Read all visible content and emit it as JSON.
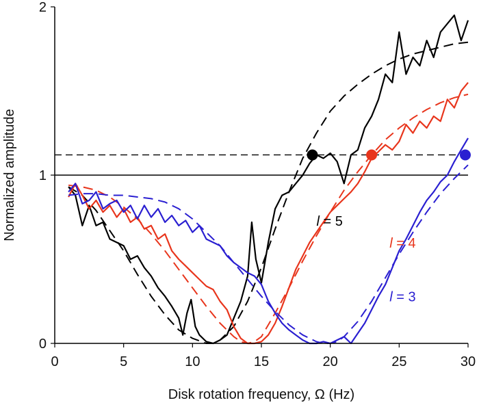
{
  "chart_data": {
    "type": "line",
    "title": "",
    "xlabel": "Disk rotation frequency, Ω (Hz)",
    "ylabel": "Normalized amplitude",
    "xlim": [
      0,
      30
    ],
    "ylim": [
      0,
      2
    ],
    "xticks": [
      0,
      5,
      10,
      15,
      20,
      25,
      30
    ],
    "yticks": [
      0,
      1,
      2
    ],
    "reference_lines": [
      {
        "y": 1.0,
        "style": "solid",
        "color": "#000000"
      },
      {
        "y": 1.12,
        "style": "dashed",
        "color": "#000000"
      }
    ],
    "markers": [
      {
        "series": "l = 5",
        "x": 18.7,
        "y": 1.12,
        "color": "#000000"
      },
      {
        "series": "l = 4",
        "x": 23.0,
        "y": 1.12,
        "color": "#e8351c"
      },
      {
        "series": "l = 3",
        "x": 29.8,
        "y": 1.12,
        "color": "#2a1fd1"
      }
    ],
    "series": [
      {
        "name": "l = 5",
        "color": "#000000",
        "label": {
          "var": "l",
          "eq": " = 5",
          "x": 19.0,
          "y": 0.7
        },
        "x": [
          1.0,
          1.5,
          2.0,
          2.5,
          3.0,
          3.5,
          4.0,
          4.5,
          5.0,
          5.5,
          6.0,
          6.5,
          7.0,
          7.5,
          8.0,
          8.5,
          9.0,
          9.3,
          9.6,
          9.9,
          10.2,
          10.5,
          11.0,
          11.5,
          12.0,
          12.5,
          13.0,
          13.5,
          14.0,
          14.3,
          14.6,
          15.0,
          15.5,
          16.0,
          16.5,
          17.0,
          17.5,
          18.0,
          18.5,
          19.0,
          19.5,
          20.0,
          20.5,
          21.0,
          21.5,
          22.0,
          22.5,
          23.0,
          23.5,
          24.0,
          24.5,
          25.0,
          25.5,
          26.0,
          26.5,
          27.0,
          27.5,
          28.0,
          28.5,
          29.0,
          29.5,
          30.0
        ],
        "values": [
          0.93,
          0.88,
          0.7,
          0.82,
          0.7,
          0.72,
          0.62,
          0.6,
          0.58,
          0.5,
          0.52,
          0.45,
          0.4,
          0.33,
          0.28,
          0.22,
          0.15,
          0.05,
          0.18,
          0.26,
          0.1,
          0.05,
          0.01,
          0.0,
          0.02,
          0.05,
          0.15,
          0.25,
          0.4,
          0.72,
          0.5,
          0.36,
          0.6,
          0.8,
          0.88,
          0.9,
          0.95,
          1.0,
          1.07,
          1.12,
          1.1,
          1.13,
          1.08,
          0.95,
          1.12,
          1.15,
          1.28,
          1.35,
          1.45,
          1.6,
          1.55,
          1.85,
          1.6,
          1.7,
          1.65,
          1.8,
          1.7,
          1.85,
          1.9,
          1.95,
          1.8,
          1.92
        ]
      },
      {
        "name": "l = 5 fit",
        "color": "#000000",
        "dashed": true,
        "x": [
          1.0,
          2.0,
          3.0,
          4.0,
          5.0,
          6.0,
          7.0,
          8.0,
          9.0,
          10.0,
          11.0,
          11.5,
          12.0,
          13.0,
          14.0,
          15.0,
          16.0,
          17.0,
          18.0,
          19.0,
          20.0,
          21.0,
          22.0,
          23.0,
          24.0,
          25.0,
          26.0,
          27.0,
          28.0,
          29.0,
          30.0
        ],
        "values": [
          0.93,
          0.88,
          0.79,
          0.67,
          0.55,
          0.41,
          0.28,
          0.17,
          0.08,
          0.03,
          0.0,
          0.0,
          0.02,
          0.1,
          0.25,
          0.45,
          0.68,
          0.9,
          1.1,
          1.25,
          1.38,
          1.47,
          1.54,
          1.6,
          1.65,
          1.69,
          1.72,
          1.74,
          1.76,
          1.78,
          1.79
        ]
      },
      {
        "name": "l = 4",
        "color": "#e8351c",
        "label": {
          "var": "l",
          "eq": " = 4",
          "x": 24.3,
          "y": 0.57
        },
        "x": [
          1.0,
          1.5,
          2.0,
          2.5,
          3.0,
          3.5,
          4.0,
          4.5,
          5.0,
          5.5,
          6.0,
          6.5,
          7.0,
          7.5,
          8.0,
          8.5,
          9.0,
          9.5,
          10.0,
          10.5,
          11.0,
          11.5,
          12.0,
          12.5,
          13.0,
          13.5,
          14.0,
          14.5,
          15.0,
          15.5,
          16.0,
          16.5,
          17.0,
          17.5,
          18.0,
          18.5,
          19.0,
          19.5,
          20.0,
          20.5,
          21.0,
          21.5,
          22.0,
          22.5,
          23.0,
          23.5,
          24.0,
          24.5,
          25.0,
          25.5,
          26.0,
          26.5,
          27.0,
          27.5,
          28.0,
          28.5,
          29.0,
          29.5,
          30.0
        ],
        "values": [
          0.87,
          0.95,
          0.88,
          0.8,
          0.85,
          0.78,
          0.82,
          0.75,
          0.8,
          0.72,
          0.75,
          0.68,
          0.7,
          0.62,
          0.65,
          0.55,
          0.5,
          0.46,
          0.42,
          0.38,
          0.34,
          0.32,
          0.25,
          0.2,
          0.1,
          0.03,
          0.0,
          0.0,
          0.01,
          0.05,
          0.12,
          0.22,
          0.33,
          0.44,
          0.52,
          0.6,
          0.66,
          0.72,
          0.78,
          0.82,
          0.86,
          0.9,
          0.95,
          1.02,
          1.1,
          1.14,
          1.18,
          1.15,
          1.2,
          1.3,
          1.25,
          1.32,
          1.28,
          1.35,
          1.32,
          1.45,
          1.4,
          1.5,
          1.55
        ]
      },
      {
        "name": "l = 4 fit",
        "color": "#e8351c",
        "dashed": true,
        "x": [
          1.0,
          2.0,
          3.0,
          4.0,
          5.0,
          6.0,
          7.0,
          8.0,
          9.0,
          10.0,
          11.0,
          12.0,
          13.0,
          13.5,
          14.0,
          14.5,
          15.0,
          16.0,
          17.0,
          18.0,
          19.0,
          20.0,
          21.0,
          22.0,
          23.0,
          24.0,
          25.0,
          26.0,
          27.0,
          28.0,
          29.0,
          30.0
        ],
        "values": [
          0.94,
          0.93,
          0.91,
          0.87,
          0.81,
          0.74,
          0.65,
          0.55,
          0.44,
          0.33,
          0.22,
          0.12,
          0.04,
          0.01,
          0.0,
          0.01,
          0.04,
          0.18,
          0.33,
          0.49,
          0.64,
          0.78,
          0.91,
          1.02,
          1.12,
          1.21,
          1.28,
          1.34,
          1.39,
          1.43,
          1.46,
          1.48
        ]
      },
      {
        "name": "l = 3",
        "color": "#2a1fd1",
        "label": {
          "var": "l",
          "eq": " = 3",
          "x": 24.3,
          "y": 0.25
        },
        "x": [
          1.0,
          1.5,
          2.0,
          2.5,
          3.0,
          3.5,
          4.0,
          4.5,
          5.0,
          5.5,
          6.0,
          6.5,
          7.0,
          7.5,
          8.0,
          8.5,
          9.0,
          9.5,
          10.0,
          10.5,
          11.0,
          11.5,
          12.0,
          12.5,
          13.0,
          13.5,
          14.0,
          14.5,
          15.0,
          15.5,
          16.0,
          16.5,
          17.0,
          17.5,
          18.0,
          18.5,
          19.0,
          19.5,
          20.0,
          20.5,
          21.0,
          21.5,
          22.0,
          22.5,
          23.0,
          23.5,
          24.0,
          24.5,
          25.0,
          25.5,
          26.0,
          26.5,
          27.0,
          27.5,
          28.0,
          28.5,
          29.0,
          29.5,
          30.0
        ],
        "values": [
          0.9,
          0.95,
          0.83,
          0.85,
          0.9,
          0.8,
          0.83,
          0.85,
          0.78,
          0.82,
          0.74,
          0.82,
          0.75,
          0.8,
          0.72,
          0.76,
          0.7,
          0.73,
          0.66,
          0.7,
          0.62,
          0.6,
          0.58,
          0.52,
          0.48,
          0.45,
          0.42,
          0.4,
          0.35,
          0.25,
          0.18,
          0.12,
          0.08,
          0.05,
          0.02,
          0.0,
          0.0,
          0.01,
          0.0,
          0.02,
          0.04,
          0.0,
          0.06,
          0.12,
          0.2,
          0.28,
          0.35,
          0.45,
          0.55,
          0.62,
          0.7,
          0.78,
          0.85,
          0.9,
          0.96,
          1.0,
          1.08,
          1.15,
          1.22
        ]
      },
      {
        "name": "l = 3 fit",
        "color": "#2a1fd1",
        "dashed": true,
        "x": [
          1.0,
          2.0,
          3.0,
          4.0,
          5.0,
          6.0,
          7.0,
          8.0,
          9.0,
          10.0,
          11.0,
          12.0,
          13.0,
          14.0,
          15.0,
          16.0,
          17.0,
          18.0,
          19.0,
          19.5,
          20.0,
          20.5,
          21.0,
          22.0,
          23.0,
          24.0,
          25.0,
          26.0,
          27.0,
          28.0,
          29.0,
          30.0
        ],
        "values": [
          0.88,
          0.89,
          0.89,
          0.88,
          0.88,
          0.87,
          0.86,
          0.84,
          0.8,
          0.74,
          0.66,
          0.58,
          0.48,
          0.38,
          0.28,
          0.19,
          0.11,
          0.05,
          0.01,
          0.0,
          0.0,
          0.01,
          0.04,
          0.13,
          0.25,
          0.39,
          0.53,
          0.66,
          0.78,
          0.89,
          0.98,
          1.06
        ]
      }
    ]
  }
}
